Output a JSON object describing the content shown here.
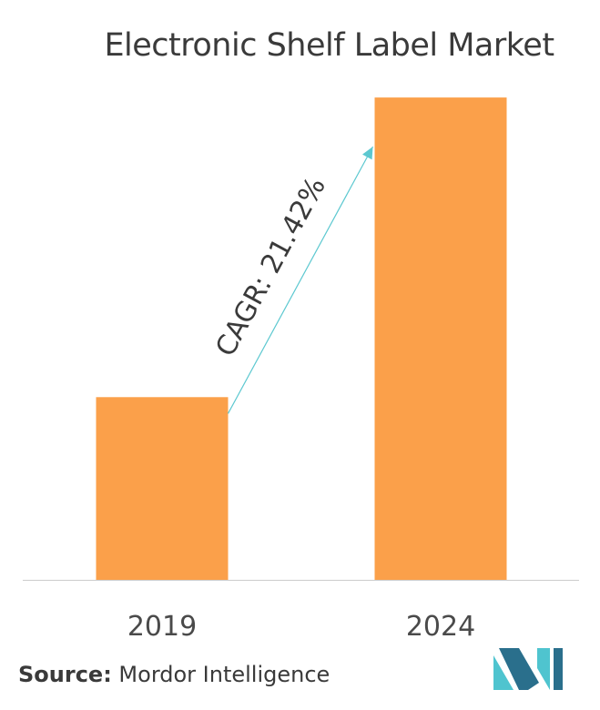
{
  "chart_data": {
    "type": "bar",
    "title": "Electronic Shelf Label Market",
    "categories": [
      "2019",
      "2024"
    ],
    "values": [
      1.0,
      2.64
    ],
    "ylim": [
      0,
      2.8
    ],
    "grid": false,
    "annotation": "CAGR: 21.42%"
  },
  "footer": {
    "source_label": "Source:",
    "source_text": " Mordor Intelligence"
  },
  "colors": {
    "bar": "#FBA04A",
    "arrow": "#5CC8D0",
    "axis": "#cccccc",
    "logo_dark": "#2A6F8C",
    "logo_light": "#4FC4CF"
  },
  "icons": {
    "logo": "mordor-intelligence-logo-icon"
  }
}
